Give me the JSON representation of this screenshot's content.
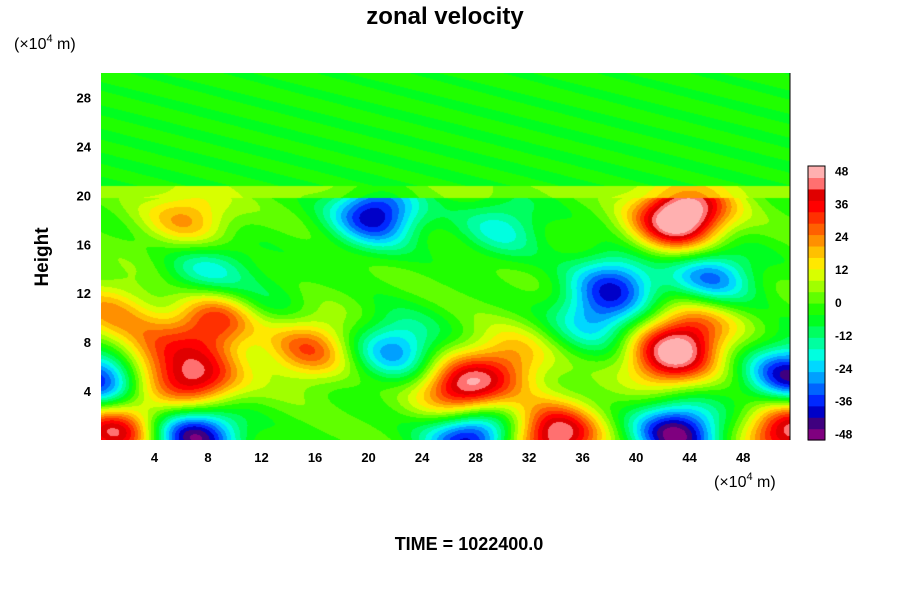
{
  "chart_data": {
    "type": "heatmap",
    "title": "zonal velocity",
    "ylabel": "Height",
    "xlabel": "",
    "x_unit": {
      "prefix": "(×10",
      "exp": "4",
      "suffix": " m)"
    },
    "y_unit": {
      "prefix": "(×10",
      "exp": "4",
      "suffix": " m)"
    },
    "xlim": [
      0,
      51.5
    ],
    "ylim": [
      0,
      30
    ],
    "xticks": [
      4,
      8,
      12,
      16,
      20,
      24,
      28,
      32,
      36,
      40,
      44,
      48
    ],
    "yticks": [
      4,
      8,
      12,
      16,
      20,
      24,
      28
    ],
    "colorbar": {
      "vmin": -50,
      "vmax": 50,
      "ticks": [
        48,
        36,
        24,
        12,
        0,
        -12,
        -24,
        -36,
        -48
      ],
      "colors": [
        "#7f007f",
        "#3f007f",
        "#0000c8",
        "#0028ff",
        "#0064ff",
        "#00a0ff",
        "#00d8ff",
        "#00ffe0",
        "#00ffa0",
        "#00ff60",
        "#00ff20",
        "#20ff00",
        "#60ff00",
        "#a0ff00",
        "#d8ff00",
        "#ffe800",
        "#ffc000",
        "#ff9000",
        "#ff6000",
        "#ff3000",
        "#ff0000",
        "#e00000",
        "#ff7070",
        "#ffb0b0"
      ]
    },
    "features": [
      {
        "x": 7.0,
        "y": 4.8,
        "value": 42
      },
      {
        "x": 8.5,
        "y": 9.8,
        "value": 36
      },
      {
        "x": 3.5,
        "y": 7.0,
        "value": 24
      },
      {
        "x": 15.5,
        "y": 7.5,
        "value": 28
      },
      {
        "x": 27.0,
        "y": 4.0,
        "value": 48
      },
      {
        "x": 30.5,
        "y": 6.5,
        "value": 22
      },
      {
        "x": 42.5,
        "y": 6.8,
        "value": 44
      },
      {
        "x": 44.5,
        "y": 9.5,
        "value": 26
      },
      {
        "x": 34.0,
        "y": 0.4,
        "value": 48
      },
      {
        "x": 51.5,
        "y": 0.9,
        "value": 48
      },
      {
        "x": 1.0,
        "y": 0.9,
        "value": 44
      },
      {
        "x": 0.0,
        "y": 5.0,
        "value": -44
      },
      {
        "x": 51.5,
        "y": 5.2,
        "value": -44
      },
      {
        "x": 7.0,
        "y": 0.5,
        "value": -48
      },
      {
        "x": 27.5,
        "y": 0.5,
        "value": -46
      },
      {
        "x": 43.0,
        "y": 0.6,
        "value": -48
      },
      {
        "x": 20.5,
        "y": 18.5,
        "value": -42
      },
      {
        "x": 30.0,
        "y": 17.5,
        "value": -18
      },
      {
        "x": 38.5,
        "y": 13.0,
        "value": -30
      },
      {
        "x": 45.5,
        "y": 13.2,
        "value": -32
      },
      {
        "x": 8.0,
        "y": 13.8,
        "value": -20
      },
      {
        "x": 44.0,
        "y": 19.0,
        "value": 38
      },
      {
        "x": 42.5,
        "y": 17.5,
        "value": 30
      },
      {
        "x": 6.5,
        "y": 18.2,
        "value": 22
      },
      {
        "x": 0.5,
        "y": 10.5,
        "value": 20
      },
      {
        "x": 22.0,
        "y": 7.5,
        "value": -28
      },
      {
        "x": 37.0,
        "y": 10.0,
        "value": -24
      },
      {
        "x": 12.0,
        "y": 11.2,
        "value": -10
      }
    ]
  },
  "footer": {
    "time_label": "TIME = 1022400.0"
  }
}
